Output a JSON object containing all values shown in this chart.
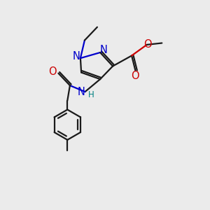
{
  "bg_color": "#ebebeb",
  "bond_color": "#1a1a1a",
  "n_color": "#0000cc",
  "o_color": "#cc0000",
  "h_color": "#008080",
  "line_width": 1.6,
  "font_size": 10.5,
  "small_font": 8.5,
  "figsize": [
    3.0,
    3.0
  ],
  "dpi": 100,
  "xlim": [
    0,
    10
  ],
  "ylim": [
    0,
    10
  ]
}
